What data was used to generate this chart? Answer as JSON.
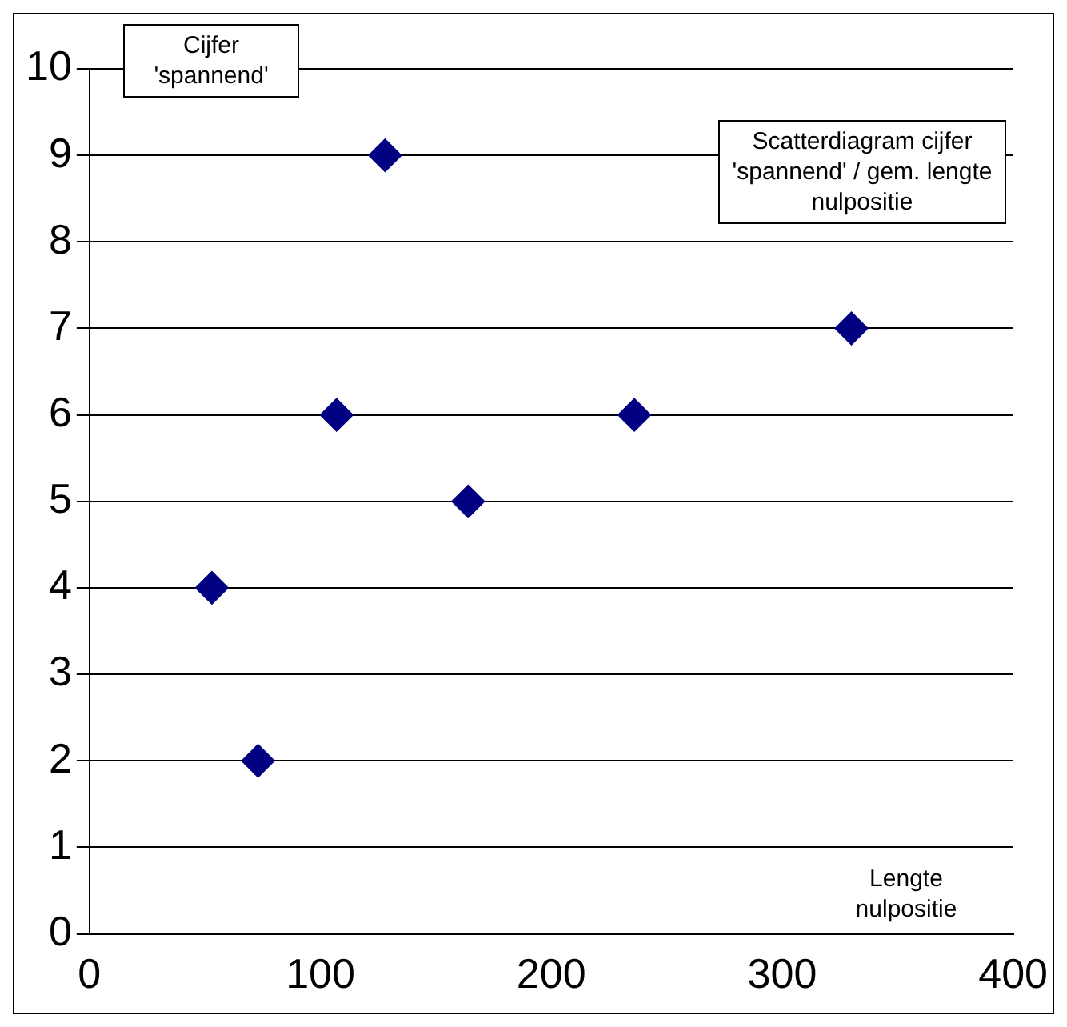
{
  "chart_data": {
    "type": "scatter",
    "title": "Scatterdiagram cijfer 'spannend' / gem. lengte nulpositie",
    "xlabel": "Lengte nulpositie",
    "ylabel": "Cijfer 'spannend'",
    "x": [
      53,
      73,
      107,
      128,
      164,
      236,
      330
    ],
    "series": [
      {
        "color": "#000080",
        "values": [
          4,
          2,
          6,
          9,
          5,
          6,
          7
        ]
      }
    ],
    "xlim": [
      0,
      400
    ],
    "xticks": [
      0,
      100,
      200,
      300,
      400
    ],
    "ylim": [
      0,
      10
    ],
    "yticks": [
      0,
      1,
      2,
      3,
      4,
      5,
      6,
      7,
      8,
      9,
      10
    ],
    "grid": "y",
    "legend": false,
    "marker": "diamond"
  }
}
